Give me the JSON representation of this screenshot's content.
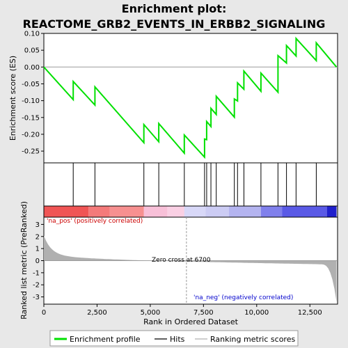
{
  "chart_data": {
    "type": "line",
    "title_line1": "Enrichment plot:",
    "title_line2": "REACTOME_GRB2_EVENTS_IN_ERBB2_SIGNALING",
    "ylabel_top": "Enrichment score (ES)",
    "ylabel_bottom": "Ranked list metric (PreRanked)",
    "xlabel": "Rank in Ordered Dataset",
    "xlim": [
      0,
      13800
    ],
    "es_ylim": [
      -0.285,
      0.1
    ],
    "es_yticks": [
      0.1,
      0.05,
      0.0,
      -0.05,
      -0.1,
      -0.15,
      -0.2,
      -0.25
    ],
    "es_ytick_labels": [
      "0.10",
      "0.05",
      "0.00",
      "-0.05",
      "-0.10",
      "-0.15",
      "-0.20",
      "-0.25"
    ],
    "metric_ylim": [
      -3.6,
      3.6
    ],
    "metric_yticks": [
      3,
      2,
      1,
      0,
      -1,
      -2,
      -3
    ],
    "metric_ytick_labels": [
      "3",
      "2",
      "1",
      "0",
      "-1",
      "-2",
      "-3"
    ],
    "xticks": [
      0,
      2500,
      5000,
      7500,
      10000,
      12500
    ],
    "xtick_labels": [
      "0",
      "2,500",
      "5,000",
      "7,500",
      "10,000",
      "12,500"
    ],
    "hits": [
      1380,
      2400,
      4700,
      5400,
      6600,
      7550,
      7650,
      7850,
      8100,
      8950,
      9100,
      9400,
      10200,
      11000,
      11400,
      11850,
      12800
    ],
    "enrichment_profile": {
      "x": [
        0,
        1380,
        1380,
        2400,
        2400,
        4700,
        4700,
        5400,
        5400,
        6600,
        6600,
        7550,
        7550,
        7650,
        7650,
        7850,
        7850,
        8100,
        8100,
        8950,
        8950,
        9100,
        9100,
        9400,
        9400,
        10200,
        10200,
        11000,
        11000,
        11400,
        11400,
        11850,
        11850,
        12800,
        12800,
        13750
      ],
      "y": [
        0.0,
        -0.097,
        -0.043,
        -0.113,
        -0.059,
        -0.225,
        -0.171,
        -0.222,
        -0.168,
        -0.256,
        -0.202,
        -0.268,
        -0.214,
        -0.216,
        -0.162,
        -0.177,
        -0.123,
        -0.141,
        -0.087,
        -0.149,
        -0.095,
        -0.101,
        -0.047,
        -0.066,
        -0.012,
        -0.072,
        -0.018,
        -0.075,
        0.034,
        0.012,
        0.064,
        0.033,
        0.085,
        0.019,
        0.072,
        0.0
      ]
    },
    "zero_cross_label": "Zero cross at 6700",
    "zero_cross": 6700,
    "pos_label": "'na_pos' (positively correlated)",
    "neg_label": "'na_neg' (negatively correlated)",
    "legend": [
      "Enrichment profile",
      "Hits",
      "Ranking metric scores"
    ],
    "colors": {
      "profile": "#00e000",
      "hit": "#000000",
      "metric_fill": "#b0b0b0",
      "pos_text": "#cc0000",
      "neg_text": "#0000cc",
      "background": "#e8e8e8",
      "panel": "#ffffff"
    }
  }
}
